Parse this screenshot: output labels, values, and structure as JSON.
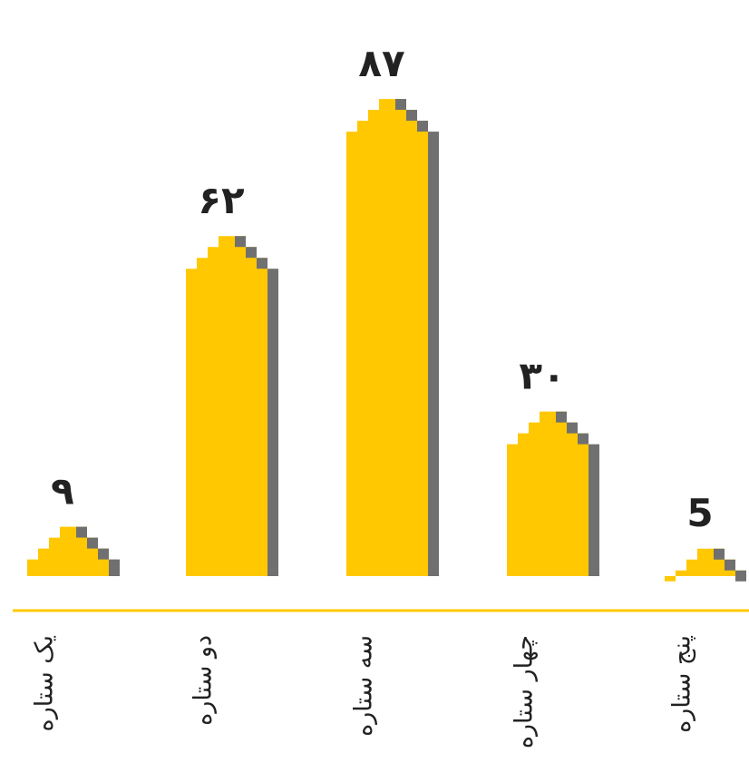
{
  "chart_data": {
    "type": "bar",
    "categories": [
      "یک ستاره",
      "دو ستاره",
      "سه ستاره",
      "چهار ستاره",
      "پنج ستاره"
    ],
    "values": [
      9,
      62,
      87,
      30,
      5
    ],
    "value_labels": [
      "۹",
      "۶۲",
      "۸۷",
      "۳۰",
      "5"
    ],
    "title": "",
    "xlabel": "",
    "ylabel": "",
    "grid": false,
    "legend": "none",
    "colors": {
      "bar": "#FFC800",
      "shadow": "#707070",
      "axis": "#FFC800",
      "text": "#222222"
    }
  }
}
